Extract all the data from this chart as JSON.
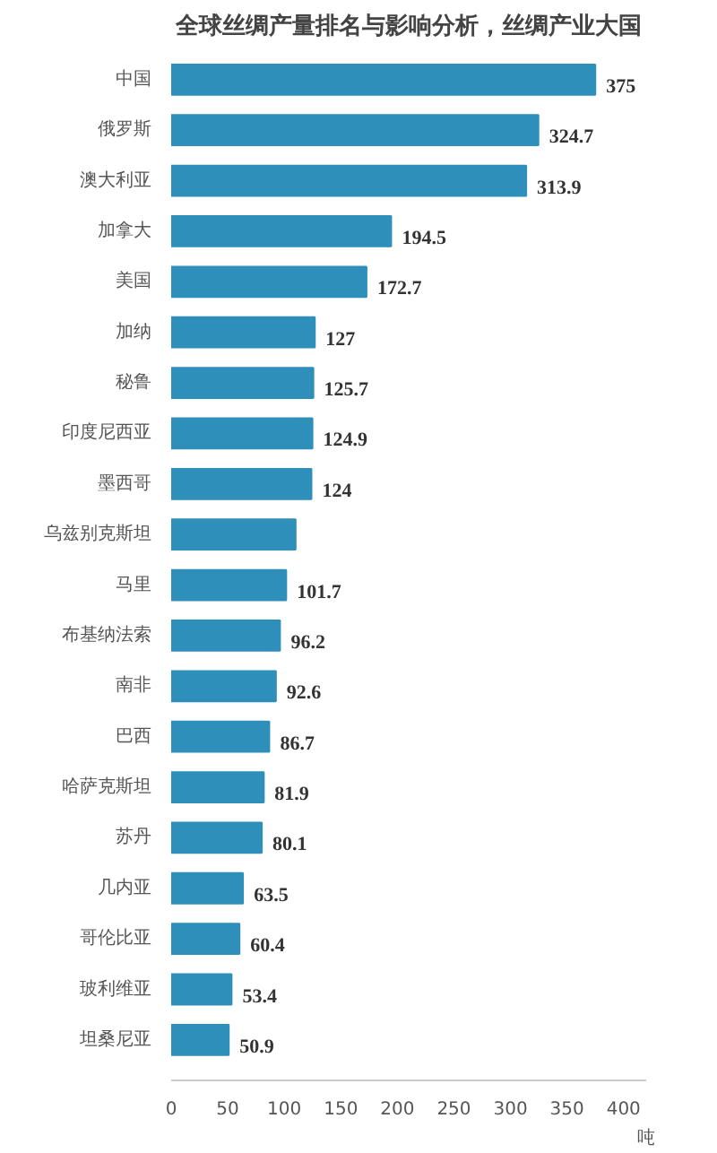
{
  "chart_data": {
    "type": "bar",
    "orientation": "horizontal",
    "title": "全球丝绸产量排名与影响分析，丝绸产业大国",
    "xlabel": "吨",
    "categories": [
      "中国",
      "俄罗斯",
      "澳大利亚",
      "加拿大",
      "美国",
      "加纳",
      "秘鲁",
      "印度尼西亚",
      "墨西哥",
      "乌兹别克斯坦",
      "马里",
      "布基纳法索",
      "南非",
      "巴西",
      "哈萨克斯坦",
      "苏丹",
      "几内亚",
      "哥伦比亚",
      "玻利维亚",
      "坦桑尼亚"
    ],
    "values": [
      375,
      324.7,
      313.9,
      194.5,
      172.7,
      127,
      125.7,
      124.9,
      124,
      110,
      101.7,
      96.2,
      92.6,
      86.7,
      81.9,
      80.1,
      63.5,
      60.4,
      53.4,
      50.9
    ],
    "value_labels": [
      "375",
      "324.7",
      "313.9",
      "194.5",
      "172.7",
      "127",
      "125.7",
      "124.9",
      "124",
      null,
      "101.7",
      "96.2",
      "92.6",
      "86.7",
      "81.9",
      "80.1",
      "63.5",
      "60.4",
      "53.4",
      "50.9"
    ],
    "color": "#2f8fbb",
    "xlim": [
      0,
      420
    ],
    "xticks": [
      0,
      50,
      100,
      150,
      200,
      250,
      300,
      350,
      400
    ],
    "grid": false
  }
}
